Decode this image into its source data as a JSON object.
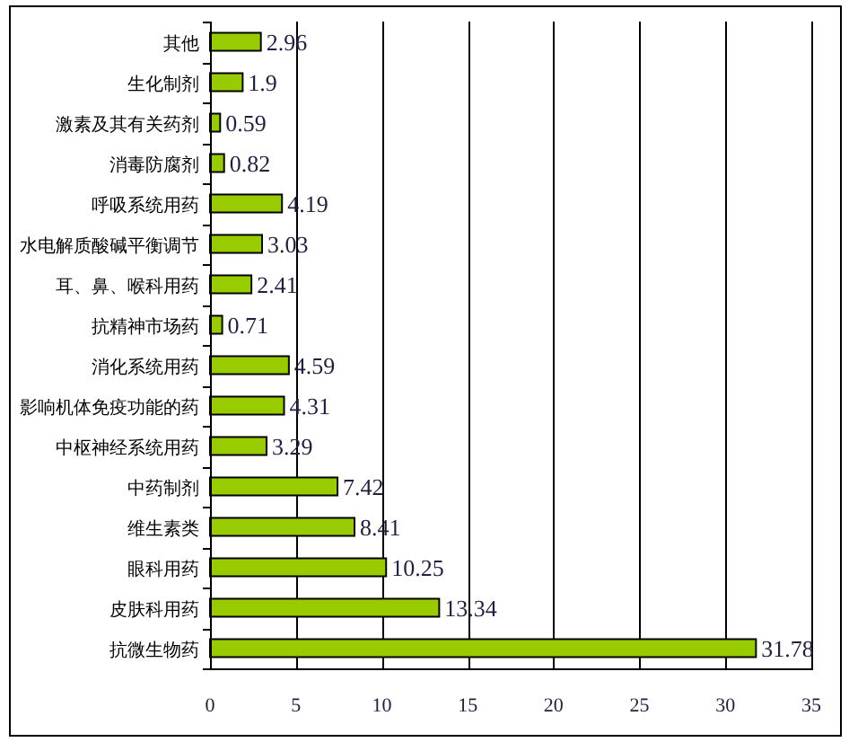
{
  "chart_data": {
    "type": "bar",
    "orientation": "horizontal",
    "categories": [
      "其他",
      "生化制剂",
      "激素及其有关药剂",
      "消毒防腐剂",
      "呼吸系统用药",
      "水电解质酸碱平衡调节",
      "耳、鼻、喉科用药",
      "抗精神市场药",
      "消化系统用药",
      "影响机体免疫功能的药",
      "中枢神经系统用药",
      "中药制剂",
      "维生素类",
      "眼科用药",
      "皮肤科用药",
      "抗微生物药"
    ],
    "values": [
      2.96,
      1.9,
      0.59,
      0.82,
      4.19,
      3.03,
      2.41,
      0.71,
      4.59,
      4.31,
      3.29,
      7.42,
      8.41,
      10.25,
      13.34,
      31.78
    ],
    "color": "#99cc00",
    "xlim": [
      0,
      35
    ],
    "xticks": [
      0,
      5,
      10,
      15,
      20,
      25,
      30,
      35
    ],
    "grid": "x",
    "data_labels": true
  }
}
